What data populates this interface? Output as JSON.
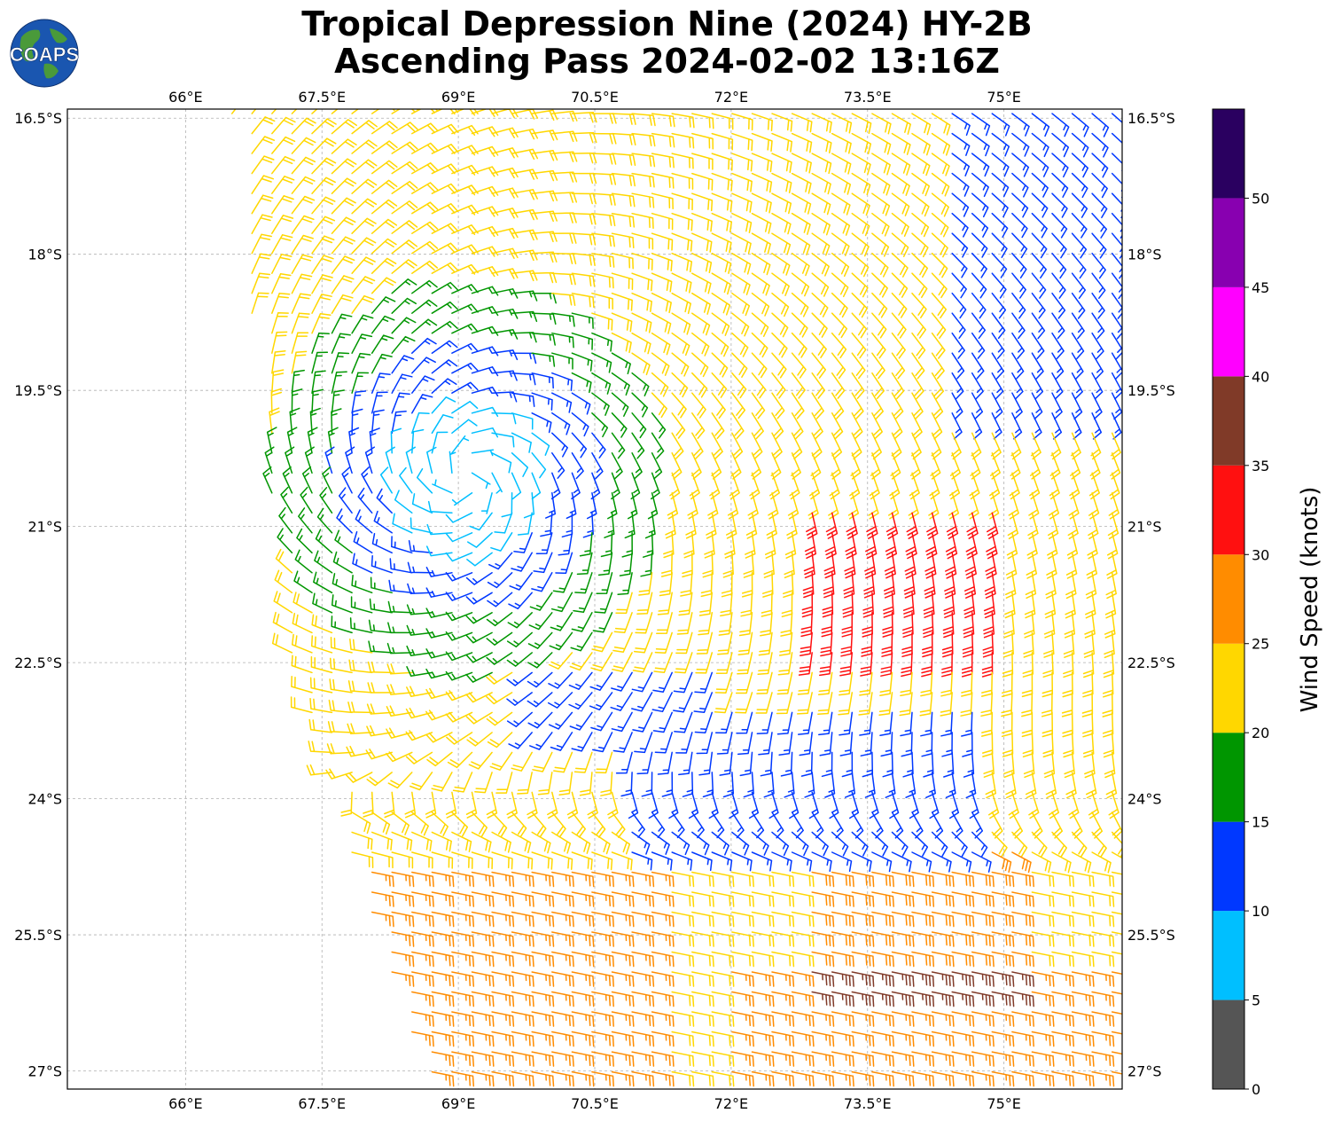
{
  "title": {
    "line1": "Tropical Depression Nine (2024) HY-2B",
    "line2": "Ascending Pass 2024-02-02 13:16Z"
  },
  "logo": {
    "text": "COAPS",
    "colors": {
      "ocean": "#1a56b0",
      "land": "#4a9a3a",
      "text": "#ffffff"
    }
  },
  "map": {
    "lon_range": [
      64.7,
      76.3
    ],
    "lat_range": [
      -27.2,
      -16.4
    ],
    "lon_ticks": [
      {
        "value": 66.0,
        "label": "66°E"
      },
      {
        "value": 67.5,
        "label": "67.5°E"
      },
      {
        "value": 69.0,
        "label": "69°E"
      },
      {
        "value": 70.5,
        "label": "70.5°E"
      },
      {
        "value": 72.0,
        "label": "72°E"
      },
      {
        "value": 73.5,
        "label": "73.5°E"
      },
      {
        "value": 75.0,
        "label": "75°E"
      }
    ],
    "lat_ticks": [
      {
        "value": -16.5,
        "label": "16.5°S"
      },
      {
        "value": -18.0,
        "label": "18°S"
      },
      {
        "value": -19.5,
        "label": "19.5°S"
      },
      {
        "value": -21.0,
        "label": "21°S"
      },
      {
        "value": -22.5,
        "label": "22.5°S"
      },
      {
        "value": -24.0,
        "label": "24°S"
      },
      {
        "value": -25.5,
        "label": "25.5°S"
      },
      {
        "value": -27.0,
        "label": "27°S"
      }
    ],
    "gridlines": true,
    "gridline_color": "#b0b0b0",
    "storm_center": {
      "lon": 69.1,
      "lat": -20.45
    },
    "swath_corners_lonlat": [
      [
        66.5,
        -16.4
      ],
      [
        76.3,
        -16.4
      ],
      [
        76.3,
        -27.2
      ],
      [
        68.65,
        -27.2
      ],
      [
        67.1,
        -22.3
      ]
    ]
  },
  "colorbar": {
    "label": "Wind Speed (knots)",
    "bins": [
      {
        "from": 0,
        "to": 5,
        "color": "#555555"
      },
      {
        "from": 5,
        "to": 10,
        "color": "#00bfff"
      },
      {
        "from": 10,
        "to": 15,
        "color": "#0038ff"
      },
      {
        "from": 15,
        "to": 20,
        "color": "#009600"
      },
      {
        "from": 20,
        "to": 25,
        "color": "#ffd700"
      },
      {
        "from": 25,
        "to": 30,
        "color": "#ff8c00"
      },
      {
        "from": 30,
        "to": 35,
        "color": "#ff1010"
      },
      {
        "from": 35,
        "to": 40,
        "color": "#803a28"
      },
      {
        "from": 40,
        "to": 45,
        "color": "#ff00ff"
      },
      {
        "from": 45,
        "to": 50,
        "color": "#8800b0"
      },
      {
        "from": 50,
        "to": 55,
        "color": "#2a0060"
      }
    ],
    "tick_values": [
      0,
      5,
      10,
      15,
      20,
      25,
      30,
      35,
      40,
      45,
      50
    ]
  },
  "chart_data": {
    "type": "wind barb map",
    "units": "knots",
    "circulation": "clockwise (Southern Hemisphere cyclone)",
    "wind_regions": [
      {
        "description": "storm core",
        "lon": 69.1,
        "lat": -20.4,
        "speed_kt": 7
      },
      {
        "description": "inner ring",
        "lon": 69.3,
        "lat": -20.6,
        "speed_kt": 12
      },
      {
        "description": "outer ring",
        "lon": 69.3,
        "lat": -20.7,
        "speed_kt": 17
      },
      {
        "description": "northeast band",
        "lon": 71.0,
        "lat": -18.0,
        "speed_kt": 22
      },
      {
        "description": "southeast maximum",
        "lon": 74.0,
        "lat": -21.5,
        "speed_kt": 32
      },
      {
        "description": "southern band maximum",
        "lon": 74.0,
        "lat": -25.0,
        "speed_kt": 31
      },
      {
        "description": "southwest band",
        "lon": 69.5,
        "lat": -26.0,
        "speed_kt": 27
      },
      {
        "description": "eastern edge",
        "lon": 75.8,
        "lat": -18.5,
        "speed_kt": 13
      },
      {
        "description": "south-central lull",
        "lon": 72.5,
        "lat": -23.7,
        "speed_kt": 13
      }
    ]
  }
}
